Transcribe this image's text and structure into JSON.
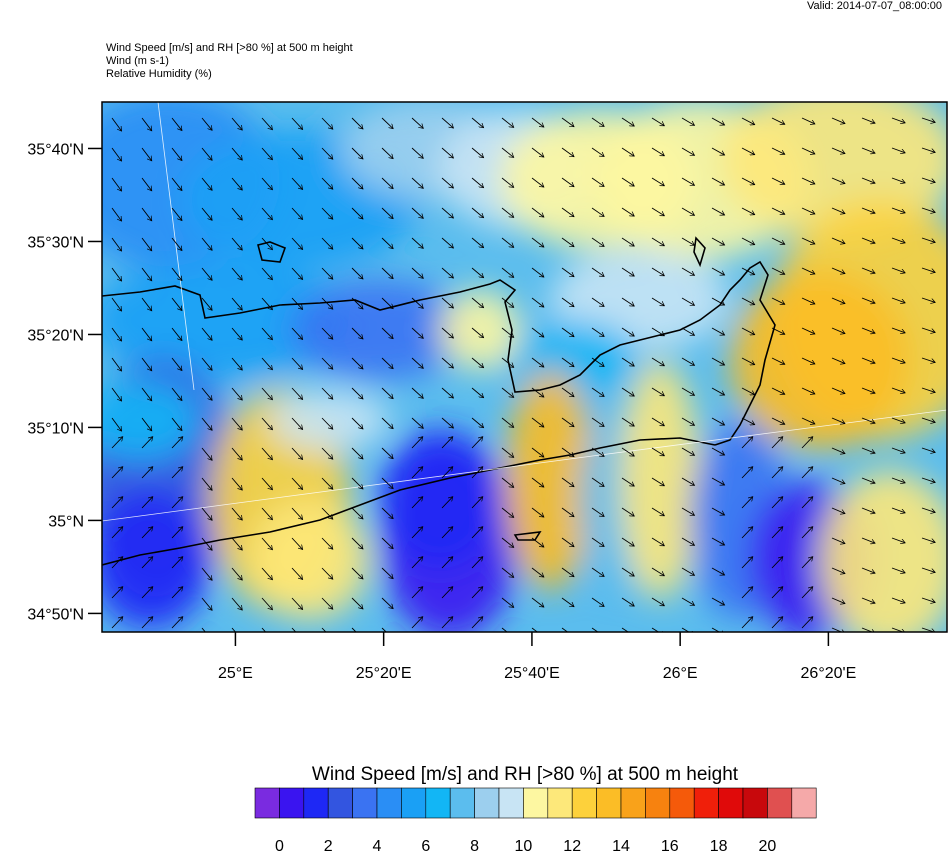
{
  "header": {
    "valid": "Valid: 2014-07-07_08:00:00",
    "title_lines": [
      "Wind Speed [m/s] and RH [>80 %] at 500 m height",
      "Wind   (m s-1)",
      "Relative Humidity   (%)"
    ]
  },
  "chart_data": {
    "type": "heatmap",
    "title": "Wind Speed [m/s] and RH [>80 %] at 500 m height",
    "xlabel": "",
    "ylabel": "",
    "xlim_deg_east": [
      24.7,
      26.6
    ],
    "ylim_deg_north": [
      34.8,
      35.75
    ],
    "x_ticks": [
      {
        "value": 25.0,
        "label": "25°E"
      },
      {
        "value": 25.3333,
        "label": "25°20'E"
      },
      {
        "value": 25.6667,
        "label": "25°40'E"
      },
      {
        "value": 26.0,
        "label": "26°E"
      },
      {
        "value": 26.3333,
        "label": "26°20'E"
      }
    ],
    "y_ticks": [
      {
        "value": 35.6667,
        "label": "35°40'N"
      },
      {
        "value": 35.5,
        "label": "35°30'N"
      },
      {
        "value": 35.3333,
        "label": "35°20'N"
      },
      {
        "value": 35.1667,
        "label": "35°10'N"
      },
      {
        "value": 35.0,
        "label": "35°N"
      },
      {
        "value": 34.8333,
        "label": "34°50'N"
      }
    ],
    "colorbar": {
      "title": "Wind Speed [m/s] and RH [>80 %] at 500 m height",
      "tick_labels": [
        "0",
        "2",
        "4",
        "6",
        "8",
        "10",
        "12",
        "14",
        "16",
        "18",
        "20"
      ],
      "colors": [
        "#7a2be0",
        "#3a14f0",
        "#1e28f5",
        "#3355e0",
        "#3a73f2",
        "#2a8ef5",
        "#1aa0f5",
        "#12b6f5",
        "#5bbdee",
        "#9ccfee",
        "#c8e4f4",
        "#fdf7a1",
        "#fde87a",
        "#fdd13b",
        "#fbbd26",
        "#f9a21a",
        "#f7820f",
        "#f55a0a",
        "#f01f0a",
        "#e00a0a",
        "#c8080c",
        "#e05050",
        "#f5a9a9"
      ]
    },
    "grid": true,
    "wind_vectors": "arrows over field (predominantly NW to SE)",
    "field_description_levels_ms": {
      "northwest_sea": "4-8",
      "north_central": "8-10",
      "northeast_sea": "10-14",
      "east_sea": "12-16",
      "south_of_crete_bands": "0-14"
    }
  }
}
